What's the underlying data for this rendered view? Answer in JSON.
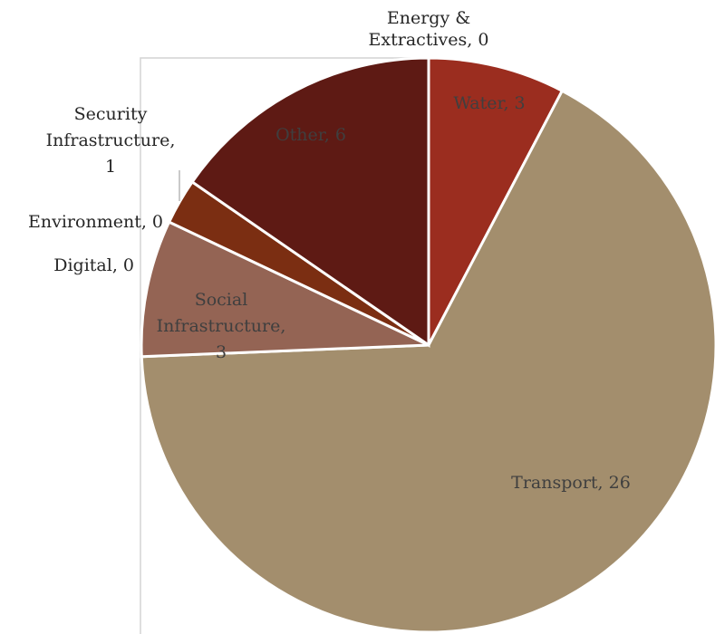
{
  "chart_data": {
    "type": "pie",
    "title": "",
    "start_angle_deg": 0,
    "direction": "clockwise",
    "slices": [
      {
        "name": "Energy & Extractives",
        "value": 0,
        "color": "#8c2a1a",
        "label": [
          "Energy &",
          "Extractives, 0"
        ]
      },
      {
        "name": "Water",
        "value": 3,
        "color": "#9b2d1f",
        "label": [
          "Water, 3"
        ]
      },
      {
        "name": "Transport",
        "value": 26,
        "color": "#a38e6d",
        "label": [
          "Transport, 26"
        ]
      },
      {
        "name": "Social Infrastructure",
        "value": 3,
        "color": "#946454",
        "label": [
          "Social",
          "Infrastructure,",
          "3"
        ]
      },
      {
        "name": "Digital",
        "value": 0,
        "color": "#7a5040",
        "label": [
          "Digital, 0"
        ]
      },
      {
        "name": "Environment",
        "value": 0,
        "color": "#6b3322",
        "label": [
          "Environment, 0"
        ]
      },
      {
        "name": "Security Infrastructure",
        "value": 1,
        "color": "#7b2e12",
        "label": [
          "Security",
          "Infrastructure,",
          "1"
        ]
      },
      {
        "name": "Other",
        "value": 6,
        "color": "#5e1a14",
        "label": [
          "Other, 6"
        ]
      }
    ],
    "label_colors": {
      "inside": "#3f3f3f",
      "outside": "#262626"
    }
  }
}
